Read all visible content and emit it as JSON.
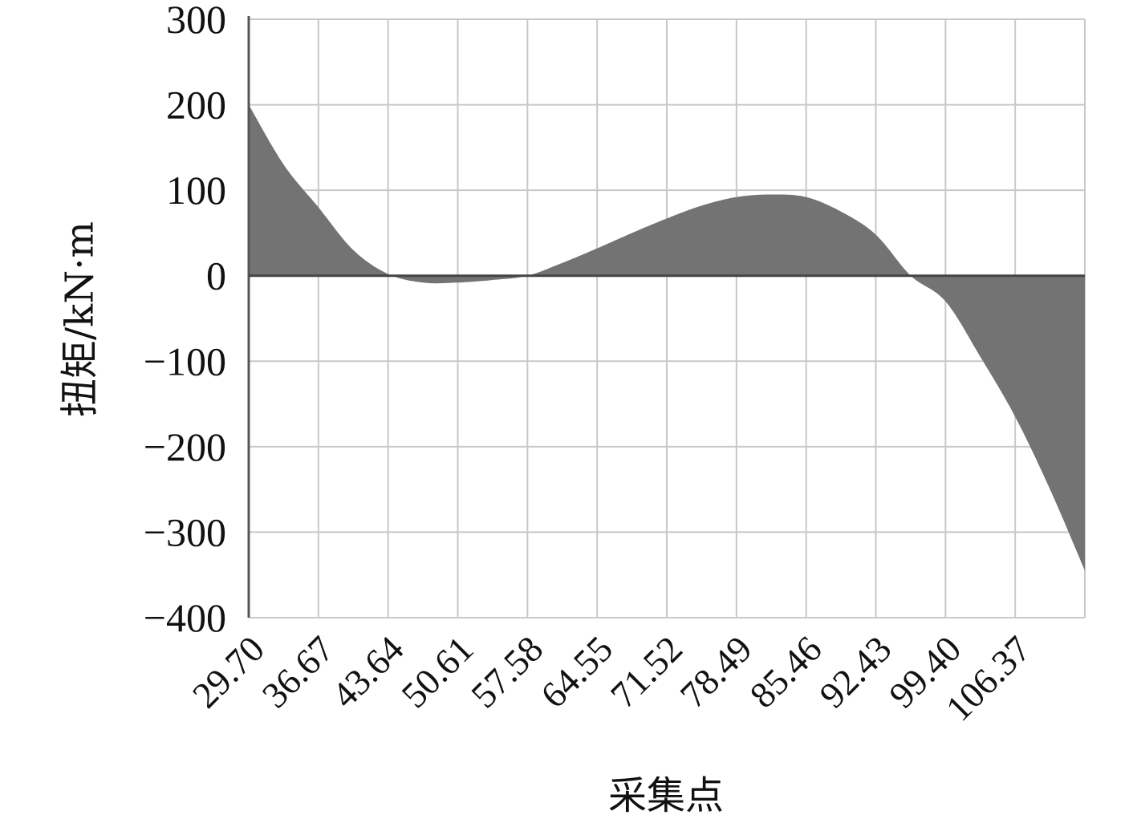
{
  "chart_data": {
    "type": "area",
    "title": "",
    "xlabel": "采集点",
    "ylabel": "扭矩/kN·m",
    "xlim": [
      29.7,
      113.34
    ],
    "ylim": [
      -400,
      300
    ],
    "grid": true,
    "x_tick_labels": [
      "29.70",
      "36.67",
      "43.64",
      "50.61",
      "57.58",
      "64.55",
      "71.52",
      "78.49",
      "85.46",
      "92.43",
      "99.40",
      "106.37"
    ],
    "y_tick_labels": [
      "300",
      "200",
      "100",
      "0",
      "−100",
      "−200",
      "−300",
      "−400"
    ],
    "fill_color": "#737373",
    "series": [
      {
        "x": [
          29.7,
          33.19,
          36.67,
          40.16,
          43.64,
          47.13,
          50.61,
          54.1,
          57.58,
          61.07,
          64.55,
          68.04,
          71.52,
          75.01,
          78.49,
          81.98,
          85.46,
          88.95,
          92.43,
          95.92,
          99.4,
          102.89,
          106.37,
          109.86,
          113.34
        ],
        "y": [
          200,
          130,
          80,
          30,
          2,
          -8,
          -8,
          -5,
          0,
          15,
          32,
          50,
          67,
          82,
          92,
          95,
          92,
          75,
          48,
          0,
          -30,
          -95,
          -165,
          -250,
          -345
        ]
      }
    ]
  }
}
